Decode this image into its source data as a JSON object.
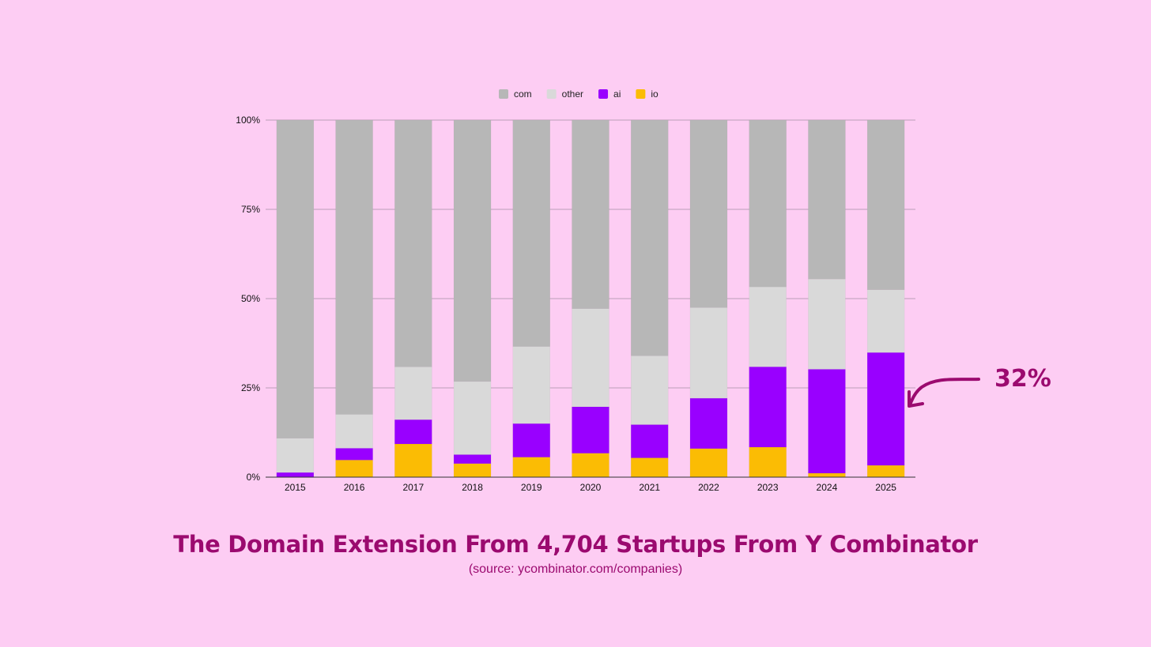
{
  "chart_data": {
    "type": "bar",
    "stacked": true,
    "percent": true,
    "title": "The Domain Extension From 4,704 Startups From Y Combinator",
    "subtitle": "(source: ycombinator.com/companies)",
    "categories": [
      "2015",
      "2016",
      "2017",
      "2018",
      "2019",
      "2020",
      "2021",
      "2022",
      "2023",
      "2024",
      "2025"
    ],
    "series": [
      {
        "name": "io",
        "color": "#fbbc04",
        "values": [
          0.0,
          4.8,
          9.3,
          3.8,
          5.6,
          6.7,
          5.4,
          8.0,
          8.4,
          1.1,
          3.3
        ]
      },
      {
        "name": "ai",
        "color": "#9900ff",
        "values": [
          1.3,
          3.3,
          6.8,
          2.5,
          9.4,
          13.0,
          9.3,
          14.1,
          22.5,
          29.1,
          31.6
        ]
      },
      {
        "name": "other",
        "color": "#d9d9d9",
        "values": [
          9.6,
          9.5,
          14.8,
          20.5,
          21.6,
          27.5,
          19.3,
          25.4,
          22.4,
          25.3,
          17.6
        ]
      },
      {
        "name": "com",
        "color": "#b7b7b7",
        "values": [
          89.1,
          82.4,
          69.1,
          73.2,
          63.4,
          52.8,
          66.0,
          52.5,
          46.7,
          44.5,
          47.5
        ]
      }
    ],
    "legend_order": [
      "com",
      "other",
      "ai",
      "io"
    ],
    "legend_position": "top",
    "y_ticks": [
      "0%",
      "25%",
      "50%",
      "75%",
      "100%"
    ],
    "ylim": [
      0,
      100
    ],
    "grid": true,
    "annotation": {
      "text": "32%",
      "target_category": "2025"
    }
  }
}
